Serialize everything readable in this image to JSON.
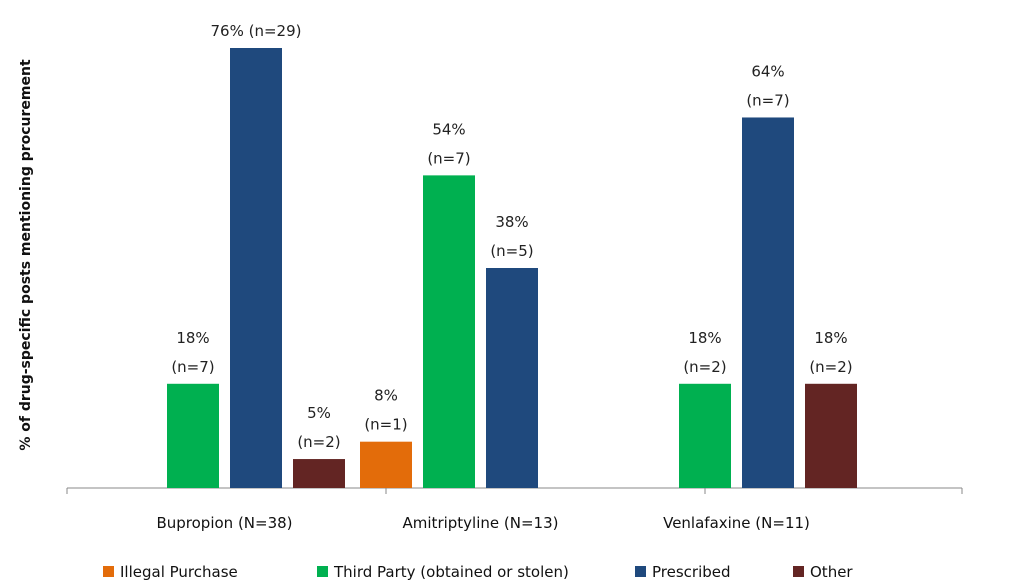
{
  "chart_data": {
    "type": "bar",
    "title": "",
    "xlabel": "",
    "ylabel": "% of drug-specific posts mentioning procurement",
    "ylim": [
      0,
      80
    ],
    "grid": false,
    "legend_position": "bottom",
    "categories": [
      "Bupropion (N=38)",
      "Amitriptyline (N=13)",
      "Venlafaxine (N=11)"
    ],
    "series": [
      {
        "name": "Illegal Purchase",
        "color": "#e36c0a",
        "values": [
          null,
          8,
          null
        ],
        "labels": [
          null,
          [
            "8%",
            "(n=1)"
          ],
          null
        ]
      },
      {
        "name": "Third Party (obtained or stolen)",
        "color": "#00b050",
        "values": [
          18,
          54,
          18
        ],
        "labels": [
          [
            "18%",
            "(n=7)"
          ],
          [
            "54%",
            "(n=7)"
          ],
          [
            "18%",
            "(n=2)"
          ]
        ]
      },
      {
        "name": "Prescribed",
        "color": "#1f497d",
        "values": [
          76,
          38,
          64
        ],
        "labels": [
          [
            "76% (n=29)"
          ],
          [
            "38%",
            "(n=5)"
          ],
          [
            "64%",
            "(n=7)"
          ]
        ]
      },
      {
        "name": "Other",
        "color": "#632523",
        "values": [
          5,
          null,
          18
        ],
        "labels": [
          [
            "5%",
            "(n=2)"
          ],
          null,
          [
            "18%",
            "(n=2)"
          ]
        ]
      }
    ]
  }
}
